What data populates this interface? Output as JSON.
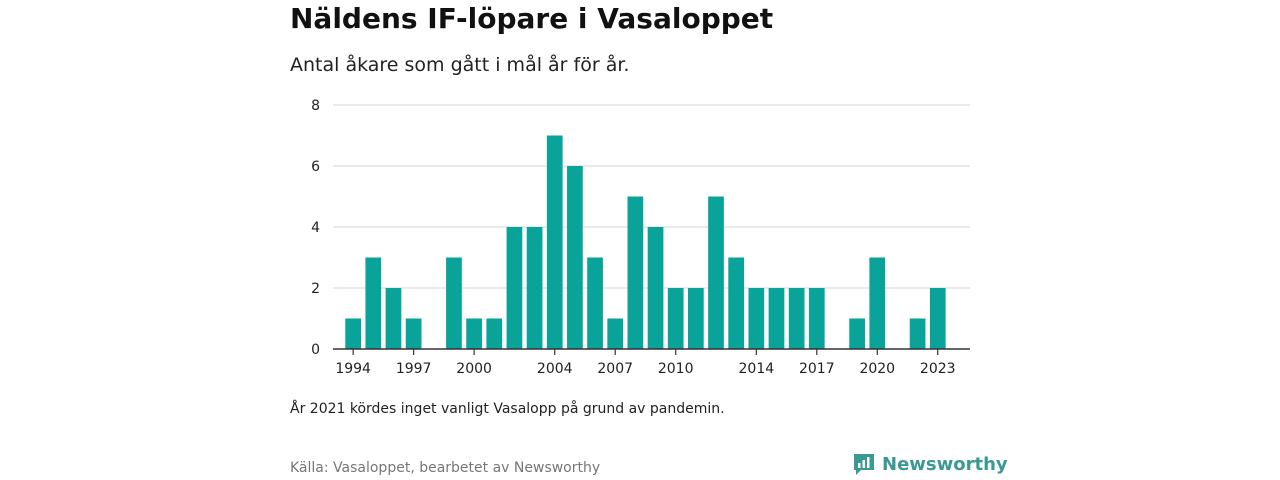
{
  "title": "Näldens IF-löpare i Vasaloppet",
  "subtitle": "Antal åkare som gått i mål år för år.",
  "footnote": "År 2021 kördes inget vanligt Vasalopp på grund av pandemin.",
  "source": "Källa: Vasaloppet, bearbetet av Newsworthy",
  "brand": {
    "name": "Newsworthy",
    "icon": "newsworthy-logo-icon",
    "color": "#3a9a93"
  },
  "colors": {
    "bar": "#0aa39a",
    "grid": "#dddddd",
    "axis": "#333333"
  },
  "chart_data": {
    "type": "bar",
    "x": [
      1994,
      1995,
      1996,
      1997,
      1998,
      1999,
      2000,
      2001,
      2002,
      2003,
      2004,
      2005,
      2006,
      2007,
      2008,
      2009,
      2010,
      2011,
      2012,
      2013,
      2014,
      2015,
      2016,
      2017,
      2018,
      2019,
      2020,
      2021,
      2022,
      2023
    ],
    "values": [
      1,
      3,
      2,
      1,
      0,
      3,
      1,
      1,
      4,
      4,
      7,
      6,
      3,
      1,
      5,
      4,
      2,
      2,
      5,
      3,
      2,
      2,
      2,
      2,
      0,
      1,
      3,
      0,
      1,
      2
    ],
    "x_ticks": [
      "1994",
      "1997",
      "2000",
      "2004",
      "2007",
      "2010",
      "2014",
      "2017",
      "2020",
      "2023"
    ],
    "y_ticks": [
      "0",
      "2",
      "4",
      "6",
      "8"
    ],
    "ylim": [
      0,
      8
    ],
    "grid": true,
    "legend": "none"
  }
}
